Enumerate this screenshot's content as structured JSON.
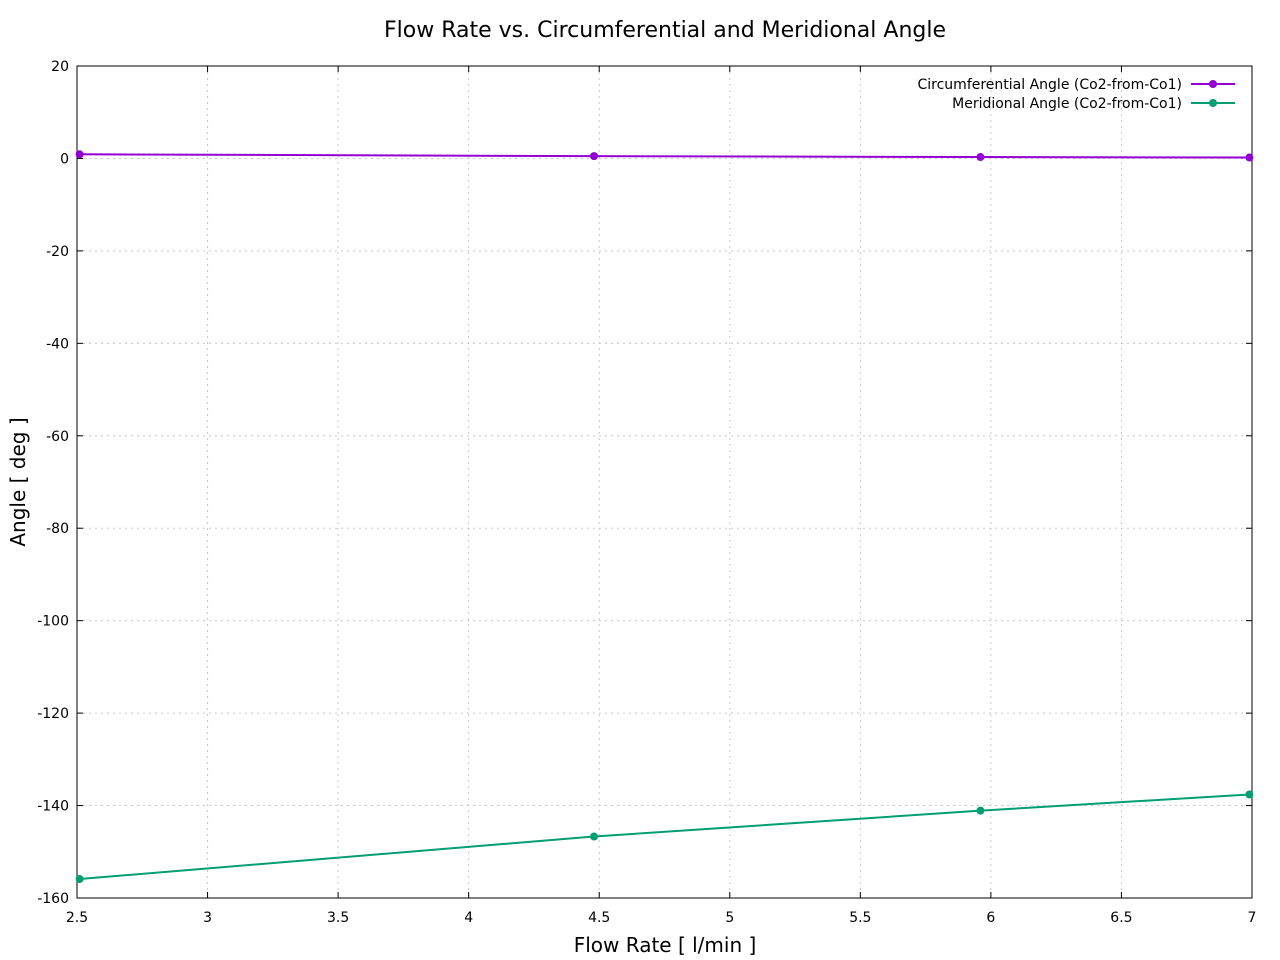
{
  "chart_data": {
    "type": "line",
    "title": "Flow Rate vs. Circumferential and Meridional Angle",
    "xlabel": "Flow Rate [ l/min ]",
    "ylabel": "Angle [ deg ]",
    "xlim": [
      2.5,
      7
    ],
    "ylim": [
      -160,
      20
    ],
    "xticks": [
      2.5,
      3,
      3.5,
      4,
      4.5,
      5,
      5.5,
      6,
      6.5,
      7
    ],
    "xtick_labels": [
      "2.5",
      "3",
      "3.5",
      "4",
      "4.5",
      "5",
      "5.5",
      "6",
      "6.5",
      "7"
    ],
    "yticks": [
      20,
      0,
      -20,
      -40,
      -60,
      -80,
      -100,
      -120,
      -140,
      -160
    ],
    "ytick_labels": [
      "20",
      "0",
      "-20",
      "-40",
      "-60",
      "-80",
      "-100",
      "-120",
      "-140",
      "-160"
    ],
    "grid": true,
    "legend_position": "top-right",
    "series": [
      {
        "name": "Circumferential Angle (Co2-from-Co1)",
        "color": "#9400d3",
        "x": [
          2.51,
          4.48,
          5.96,
          6.99
        ],
        "y": [
          0.9,
          0.5,
          0.3,
          0.2
        ]
      },
      {
        "name": "Meridional Angle (Co2-from-Co1)",
        "color": "#009e73",
        "x": [
          2.51,
          4.48,
          5.96,
          6.99
        ],
        "y": [
          -155.9,
          -146.7,
          -141.1,
          -137.6
        ]
      }
    ]
  }
}
